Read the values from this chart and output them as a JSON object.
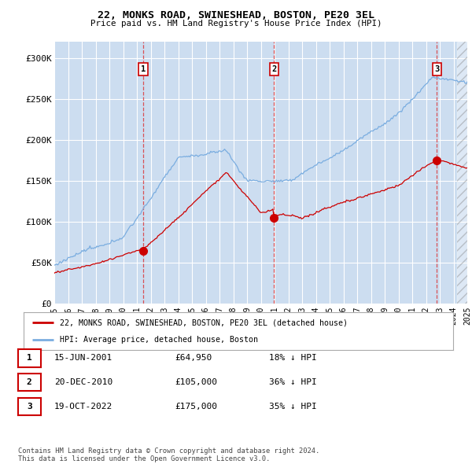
{
  "title": "22, MONKS ROAD, SWINESHEAD, BOSTON, PE20 3EL",
  "subtitle": "Price paid vs. HM Land Registry's House Price Index (HPI)",
  "ylim": [
    0,
    320000
  ],
  "yticks": [
    0,
    50000,
    100000,
    150000,
    200000,
    250000,
    300000
  ],
  "ytick_labels": [
    "£0",
    "£50K",
    "£100K",
    "£150K",
    "£200K",
    "£250K",
    "£300K"
  ],
  "background_color": "#ccddf0",
  "grid_color": "#ffffff",
  "line_color_red": "#cc0000",
  "line_color_blue": "#7aade0",
  "x_start_year": 1995,
  "x_end_year": 2025,
  "sale_year_floats": [
    2001.458,
    2010.964,
    2022.792
  ],
  "sale_prices": [
    64950,
    105000,
    175000
  ],
  "legend_label_red": "22, MONKS ROAD, SWINESHEAD, BOSTON, PE20 3EL (detached house)",
  "legend_label_blue": "HPI: Average price, detached house, Boston",
  "table_data": [
    {
      "num": "1",
      "date": "15-JUN-2001",
      "price": "£64,950",
      "hpi": "18% ↓ HPI"
    },
    {
      "num": "2",
      "date": "20-DEC-2010",
      "price": "£105,000",
      "hpi": "36% ↓ HPI"
    },
    {
      "num": "3",
      "date": "19-OCT-2022",
      "price": "£175,000",
      "hpi": "35% ↓ HPI"
    }
  ],
  "footer": "Contains HM Land Registry data © Crown copyright and database right 2024.\nThis data is licensed under the Open Government Licence v3.0."
}
